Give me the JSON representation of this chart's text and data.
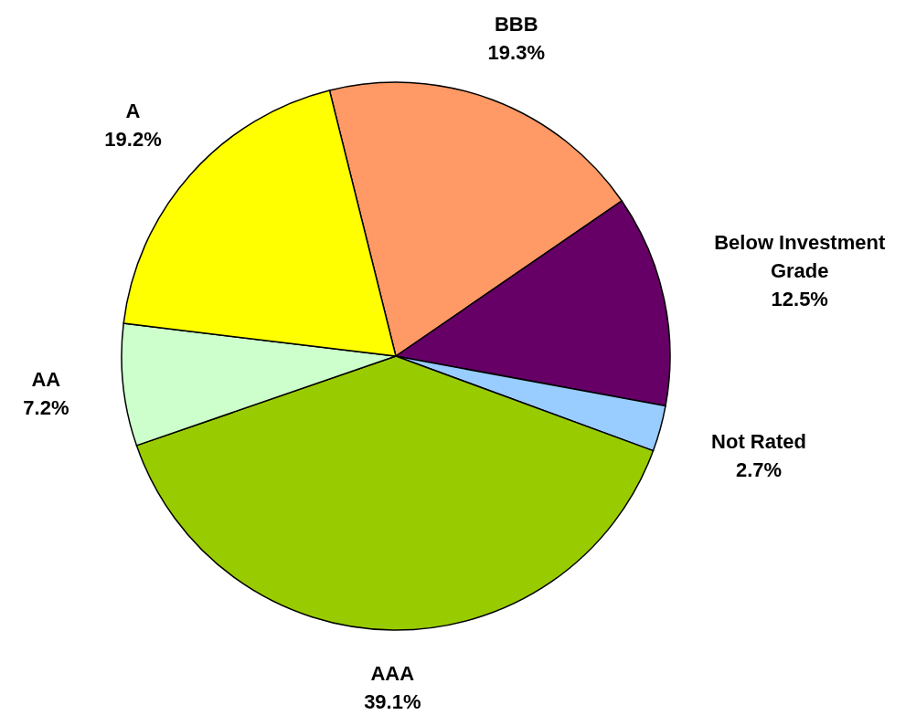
{
  "chart_data": {
    "type": "pie",
    "categories": [
      "BBB",
      "Below Investment Grade",
      "Not Rated",
      "AAA",
      "AA",
      "A"
    ],
    "values": [
      19.3,
      12.5,
      2.7,
      39.1,
      7.2,
      19.2
    ],
    "colors": [
      "#ff9966",
      "#660066",
      "#99ccff",
      "#99cc00",
      "#ccffcc",
      "#ffff00"
    ],
    "value_labels": [
      "19.3%",
      "12.5%",
      "2.7%",
      "39.1%",
      "7.2%",
      "19.2%"
    ]
  }
}
